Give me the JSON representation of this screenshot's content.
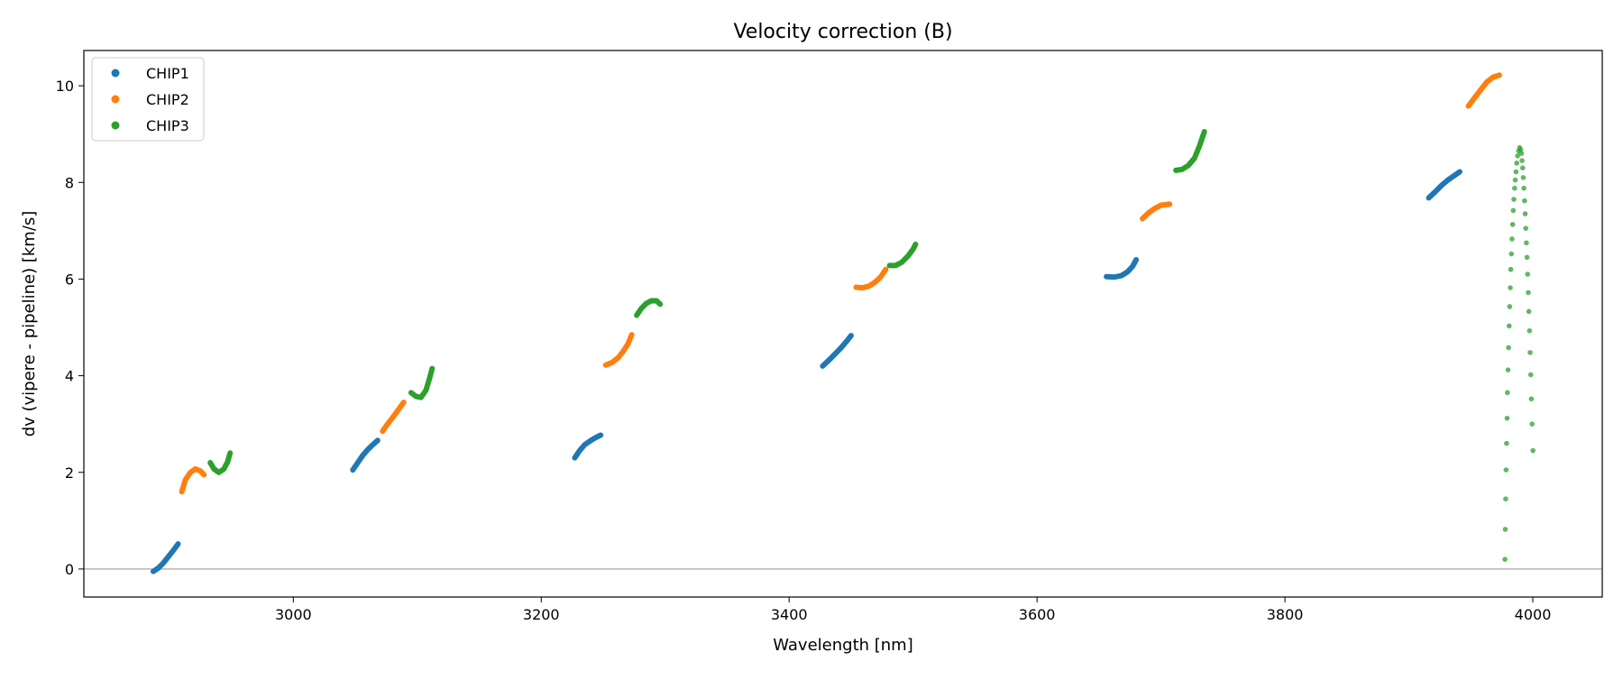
{
  "chart_data": {
    "type": "scatter",
    "title": "Velocity correction (B)",
    "xlabel": "Wavelength [nm]",
    "ylabel": "dv (vipere - pipeline) [km/s]",
    "xlim": [
      2831,
      4056
    ],
    "ylim": [
      -0.58,
      10.73
    ],
    "xticks": [
      3000,
      3200,
      3400,
      3600,
      3800,
      4000
    ],
    "yticks": [
      0,
      2,
      4,
      6,
      8,
      10
    ],
    "xtick_labels": [
      "3000",
      "3200",
      "3400",
      "3600",
      "3800",
      "4000"
    ],
    "ytick_labels": [
      "0",
      "2",
      "4",
      "6",
      "8",
      "10"
    ],
    "reference_line_y": 0,
    "legend_placement": "top-left",
    "series": [
      {
        "name": "CHIP1",
        "color": "#1f77b4",
        "segments": [
          [
            [
              2887,
              -0.05
            ],
            [
              2891,
              0.02
            ],
            [
              2895,
              0.12
            ],
            [
              2899,
              0.25
            ],
            [
              2903,
              0.38
            ],
            [
              2907,
              0.52
            ]
          ],
          [
            [
              3048,
              2.05
            ],
            [
              3052,
              2.2
            ],
            [
              3056,
              2.35
            ],
            [
              3060,
              2.47
            ],
            [
              3064,
              2.57
            ],
            [
              3068,
              2.66
            ]
          ],
          [
            [
              3227,
              2.3
            ],
            [
              3231,
              2.45
            ],
            [
              3235,
              2.57
            ],
            [
              3240,
              2.66
            ],
            [
              3244,
              2.72
            ],
            [
              3248,
              2.77
            ]
          ],
          [
            [
              3427,
              4.2
            ],
            [
              3432,
              4.32
            ],
            [
              3437,
              4.45
            ],
            [
              3442,
              4.58
            ],
            [
              3446,
              4.7
            ],
            [
              3450,
              4.83
            ]
          ],
          [
            [
              3656,
              6.05
            ],
            [
              3662,
              6.04
            ],
            [
              3668,
              6.07
            ],
            [
              3673,
              6.15
            ],
            [
              3677,
              6.26
            ],
            [
              3680,
              6.4
            ]
          ],
          [
            [
              3916,
              7.68
            ],
            [
              3921,
              7.8
            ],
            [
              3926,
              7.93
            ],
            [
              3931,
              8.04
            ],
            [
              3936,
              8.13
            ],
            [
              3941,
              8.22
            ]
          ]
        ]
      },
      {
        "name": "CHIP2",
        "color": "#ff7f0e",
        "segments": [
          [
            [
              2910,
              1.6
            ],
            [
              2913,
              1.85
            ],
            [
              2917,
              2.0
            ],
            [
              2921,
              2.07
            ],
            [
              2925,
              2.03
            ],
            [
              2928,
              1.95
            ]
          ],
          [
            [
              3072,
              2.85
            ],
            [
              3076,
              3.0
            ],
            [
              3080,
              3.13
            ],
            [
              3084,
              3.27
            ],
            [
              3089,
              3.45
            ]
          ],
          [
            [
              3252,
              4.22
            ],
            [
              3257,
              4.27
            ],
            [
              3262,
              4.37
            ],
            [
              3266,
              4.5
            ],
            [
              3270,
              4.66
            ],
            [
              3273,
              4.85
            ]
          ],
          [
            [
              3454,
              5.83
            ],
            [
              3459,
              5.82
            ],
            [
              3464,
              5.85
            ],
            [
              3469,
              5.93
            ],
            [
              3474,
              6.05
            ],
            [
              3478,
              6.2
            ]
          ],
          [
            [
              3685,
              7.25
            ],
            [
              3690,
              7.37
            ],
            [
              3695,
              7.46
            ],
            [
              3700,
              7.53
            ],
            [
              3707,
              7.55
            ]
          ],
          [
            [
              3948,
              9.58
            ],
            [
              3953,
              9.75
            ],
            [
              3958,
              9.92
            ],
            [
              3963,
              10.08
            ],
            [
              3968,
              10.18
            ],
            [
              3973,
              10.22
            ]
          ]
        ]
      },
      {
        "name": "CHIP3",
        "color": "#2ca02c",
        "segments": [
          [
            [
              2933,
              2.2
            ],
            [
              2936,
              2.07
            ],
            [
              2940,
              2.0
            ],
            [
              2944,
              2.07
            ],
            [
              2947,
              2.22
            ],
            [
              2949,
              2.4
            ]
          ],
          [
            [
              3095,
              3.65
            ],
            [
              3099,
              3.57
            ],
            [
              3103,
              3.55
            ],
            [
              3107,
              3.7
            ],
            [
              3110,
              3.95
            ],
            [
              3112,
              4.15
            ]
          ],
          [
            [
              3277,
              5.25
            ],
            [
              3281,
              5.4
            ],
            [
              3285,
              5.5
            ],
            [
              3289,
              5.55
            ],
            [
              3293,
              5.55
            ],
            [
              3296,
              5.48
            ]
          ],
          [
            [
              3481,
              6.28
            ],
            [
              3486,
              6.28
            ],
            [
              3491,
              6.35
            ],
            [
              3496,
              6.48
            ],
            [
              3500,
              6.62
            ],
            [
              3502,
              6.72
            ]
          ],
          [
            [
              3712,
              8.25
            ],
            [
              3717,
              8.27
            ],
            [
              3722,
              8.35
            ],
            [
              3727,
              8.5
            ],
            [
              3731,
              8.75
            ],
            [
              3735,
              9.05
            ]
          ]
        ],
        "scatter_points": [
          [
            3977.5,
            0.2
          ],
          [
            3977.8,
            0.82
          ],
          [
            3978.1,
            1.45
          ],
          [
            3978.4,
            2.05
          ],
          [
            3978.8,
            2.6
          ],
          [
            3979.2,
            3.12
          ],
          [
            3979.5,
            3.65
          ],
          [
            3980,
            4.12
          ],
          [
            3980.4,
            4.58
          ],
          [
            3980.9,
            5.03
          ],
          [
            3981.3,
            5.43
          ],
          [
            3981.8,
            5.82
          ],
          [
            3982.2,
            6.2
          ],
          [
            3982.7,
            6.52
          ],
          [
            3983.2,
            6.83
          ],
          [
            3983.7,
            7.13
          ],
          [
            3984.2,
            7.42
          ],
          [
            3984.7,
            7.65
          ],
          [
            3985.3,
            7.88
          ],
          [
            3985.8,
            8.05
          ],
          [
            3986.4,
            8.22
          ],
          [
            3987,
            8.4
          ],
          [
            3987.7,
            8.55
          ],
          [
            3988.5,
            8.65
          ],
          [
            3989.3,
            8.72
          ],
          [
            3990.2,
            8.68
          ],
          [
            3990.8,
            8.6
          ],
          [
            3991.3,
            8.45
          ],
          [
            3991.8,
            8.3
          ],
          [
            3992.3,
            8.1
          ],
          [
            3992.8,
            7.88
          ],
          [
            3993.3,
            7.62
          ],
          [
            3993.8,
            7.35
          ],
          [
            3994.3,
            7.05
          ],
          [
            3994.8,
            6.75
          ],
          [
            3995.3,
            6.45
          ],
          [
            3995.8,
            6.1
          ],
          [
            3996.3,
            5.72
          ],
          [
            3996.8,
            5.33
          ],
          [
            3997.3,
            4.93
          ],
          [
            3997.8,
            4.48
          ],
          [
            3998.3,
            4.02
          ],
          [
            3998.8,
            3.52
          ],
          [
            3999.4,
            3.0
          ],
          [
            4000.1,
            2.45
          ]
        ]
      }
    ]
  }
}
